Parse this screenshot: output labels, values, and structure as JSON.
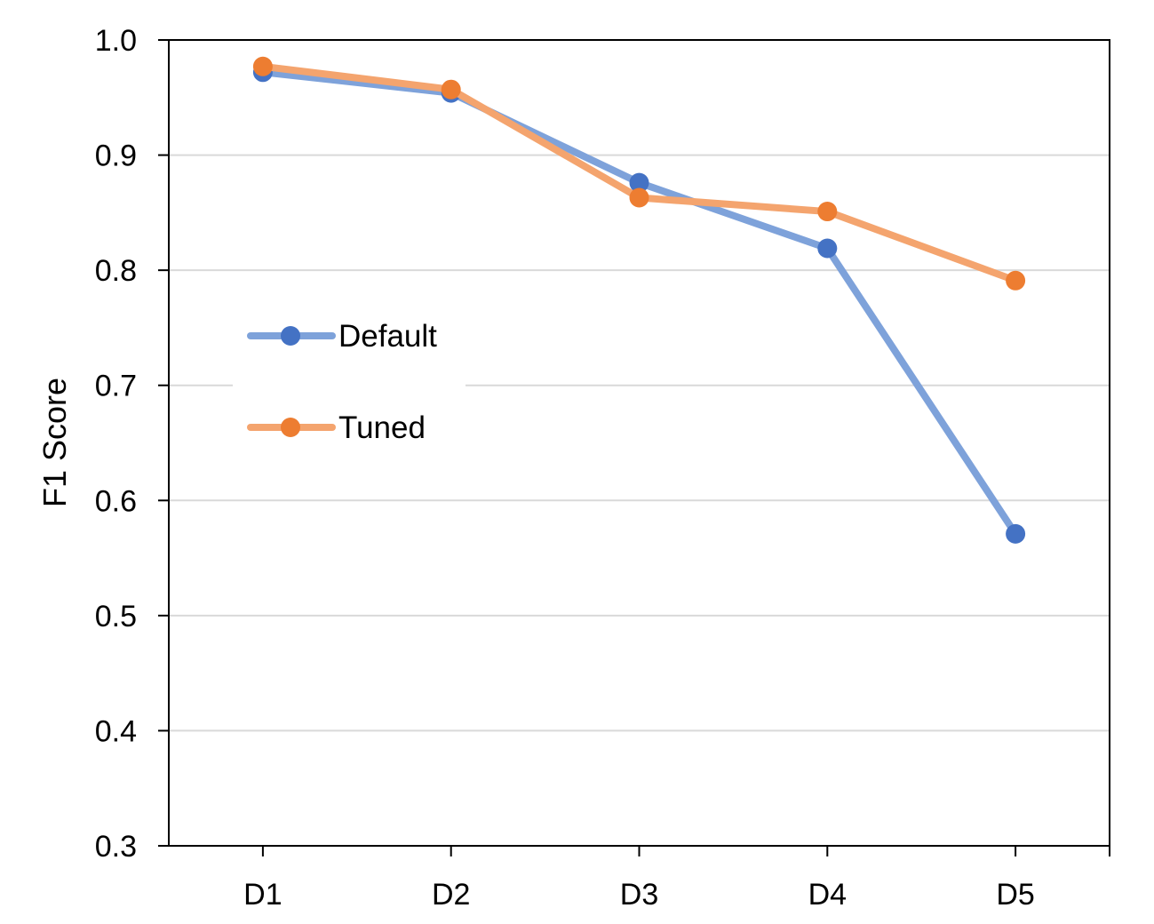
{
  "chart_data": {
    "type": "line",
    "title": "",
    "xlabel": "",
    "ylabel": "F1 Score",
    "categories": [
      "D1",
      "D2",
      "D3",
      "D4",
      "D5"
    ],
    "ylim": [
      0.3,
      1.0
    ],
    "yticks": [
      "0.3",
      "0.4",
      "0.5",
      "0.6",
      "0.7",
      "0.8",
      "0.9",
      "1.0"
    ],
    "grid": true,
    "legend_position": "left",
    "series": [
      {
        "name": "Default",
        "values": [
          0.972,
          0.954,
          0.876,
          0.819,
          0.571
        ],
        "line_color": "#7EA2DA",
        "marker_color": "#4472C4"
      },
      {
        "name": "Tuned",
        "values": [
          0.977,
          0.957,
          0.863,
          0.851,
          0.791
        ],
        "line_color": "#F4A46E",
        "marker_color": "#ED7D31"
      }
    ]
  }
}
